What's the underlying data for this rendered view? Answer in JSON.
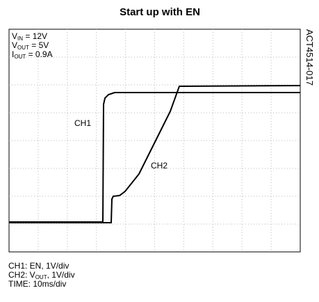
{
  "title": "Start up with EN",
  "side_label": "ACT4514-017",
  "conditions": [
    {
      "parts": [
        "V",
        "IN",
        " = 12V"
      ]
    },
    {
      "parts": [
        "V",
        "OUT",
        " = 5V"
      ]
    },
    {
      "parts": [
        "I",
        "OUT",
        " = 0.9A"
      ]
    }
  ],
  "trace_labels": [
    "CH1",
    "CH2"
  ],
  "captions": [
    {
      "parts": [
        "CH1: EN, 1V/div"
      ]
    },
    {
      "parts": [
        "CH2: V",
        "OUT",
        ", 1V/div"
      ]
    },
    {
      "parts": [
        "TIME: 10ms/div"
      ]
    }
  ]
}
